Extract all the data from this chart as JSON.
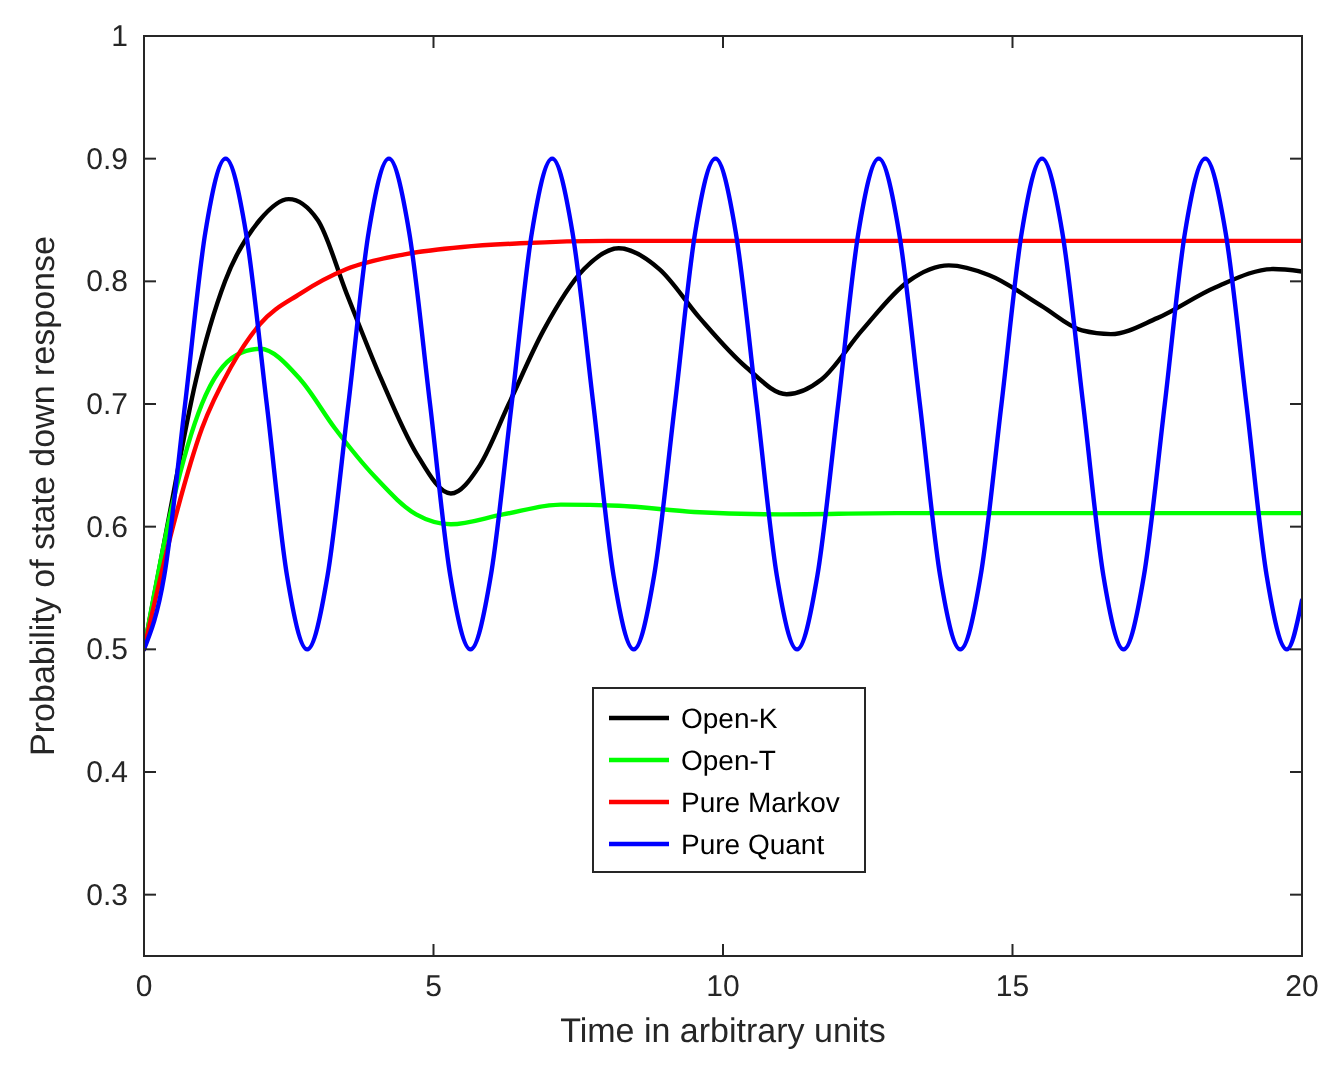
{
  "chart_data": {
    "type": "line",
    "xlabel": "Time in arbitrary units",
    "ylabel": "Probability of state down response",
    "xlim": [
      0,
      20
    ],
    "xticks": [
      0,
      5,
      10,
      15,
      20
    ],
    "ylim": [
      0.25,
      1
    ],
    "yticks": [
      0.3,
      0.4,
      0.5,
      0.6,
      0.7,
      0.8,
      0.9,
      1
    ],
    "grid": false,
    "legend": "bottom",
    "marker": "none",
    "line_style": "solid",
    "series": [
      {
        "name": "Open-K",
        "color": "#000000",
        "x": [
          0,
          0.4,
          0.9,
          1.4,
          2,
          2.5,
          3,
          3.5,
          4.1,
          4.7,
          5.3,
          5.8,
          6.3,
          6.9,
          7.6,
          8.2,
          8.9,
          9.6,
          10.4,
          11.1,
          11.7,
          12.4,
          13.2,
          13.9,
          14.6,
          15.5,
          16.2,
          16.7,
          17.5,
          18.5,
          19.5,
          20
        ],
        "values": [
          0.5,
          0.6,
          0.72,
          0.8,
          0.85,
          0.867,
          0.85,
          0.79,
          0.72,
          0.66,
          0.627,
          0.65,
          0.7,
          0.76,
          0.81,
          0.827,
          0.81,
          0.77,
          0.73,
          0.708,
          0.72,
          0.76,
          0.8,
          0.813,
          0.805,
          0.78,
          0.76,
          0.757,
          0.77,
          0.795,
          0.81,
          0.808
        ]
      },
      {
        "name": "Open-T",
        "color": "#00ff00",
        "x": [
          0,
          0.5,
          1,
          1.6,
          2,
          2.7,
          3.3,
          4,
          4.7,
          5.3,
          6.2,
          7.2,
          8.2,
          9.5,
          11,
          13,
          16,
          20
        ],
        "values": [
          0.5,
          0.62,
          0.7,
          0.74,
          0.745,
          0.72,
          0.68,
          0.64,
          0.61,
          0.602,
          0.61,
          0.618,
          0.617,
          0.612,
          0.61,
          0.611,
          0.611,
          0.611
        ]
      },
      {
        "name": "Pure Markov",
        "color": "#ff0000",
        "x": [
          0,
          0.5,
          1,
          1.5,
          2,
          2.7,
          3.5,
          4.5,
          5.5,
          6.5,
          8,
          20
        ],
        "values": [
          0.5,
          0.6,
          0.68,
          0.73,
          0.765,
          0.79,
          0.81,
          0.822,
          0.828,
          0.831,
          0.833,
          0.833
        ]
      },
      {
        "name": "Pure Quant",
        "color": "#0000ff",
        "x": [
          0,
          0.35,
          0.71,
          1.06,
          1.41,
          1.76,
          2.12,
          2.47,
          2.82,
          3.17,
          3.53,
          3.88,
          4.23,
          4.58,
          4.94,
          5.29,
          5.64,
          5.99,
          6.35,
          6.7,
          7.05,
          7.4,
          7.76,
          8.11,
          8.46,
          8.81,
          9.17,
          9.52,
          9.87,
          10.22,
          10.58,
          10.93,
          11.28,
          11.63,
          11.99,
          12.34,
          12.69,
          13.04,
          13.4,
          13.75,
          14.1,
          14.45,
          14.81,
          15.16,
          15.51,
          15.86,
          16.22,
          16.57,
          16.92,
          17.27,
          17.63,
          17.98,
          18.33,
          18.68,
          19.04,
          19.39,
          19.74,
          20
        ],
        "values": [
          0.5,
          0.56,
          0.7,
          0.84,
          0.9,
          0.84,
          0.7,
          0.56,
          0.5,
          0.56,
          0.7,
          0.84,
          0.9,
          0.84,
          0.7,
          0.56,
          0.5,
          0.56,
          0.7,
          0.84,
          0.9,
          0.84,
          0.7,
          0.56,
          0.5,
          0.56,
          0.7,
          0.84,
          0.9,
          0.84,
          0.7,
          0.56,
          0.5,
          0.56,
          0.7,
          0.84,
          0.9,
          0.84,
          0.7,
          0.56,
          0.5,
          0.56,
          0.7,
          0.84,
          0.9,
          0.84,
          0.7,
          0.56,
          0.5,
          0.56,
          0.7,
          0.84,
          0.9,
          0.84,
          0.7,
          0.56,
          0.5,
          0.54
        ]
      }
    ]
  }
}
